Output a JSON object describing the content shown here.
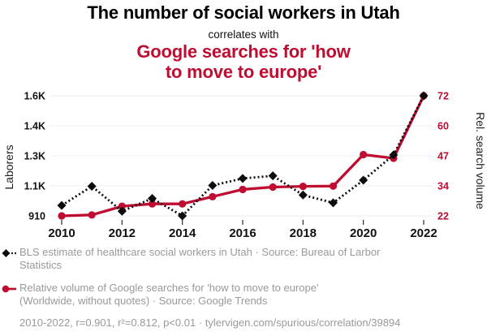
{
  "header": {
    "title": "The number of social workers in Utah",
    "connector": "correlates with",
    "subtitle": "Google searches for 'how\nto move to europe'"
  },
  "colors": {
    "accent_red": "#bf0d31",
    "series_black": "#0d0d0d",
    "legend_gray": "#999999",
    "gridline": "#ececec"
  },
  "chart_data": {
    "type": "line",
    "x": [
      2010,
      2011,
      2012,
      2013,
      2014,
      2015,
      2016,
      2017,
      2018,
      2019,
      2020,
      2021,
      2022
    ],
    "x_ticks": [
      2010,
      2012,
      2014,
      2016,
      2018,
      2020,
      2022
    ],
    "series": [
      {
        "name": "social-workers-utah",
        "label": "BLS estimate of healthcare social workers in Utah",
        "axis": "left",
        "color": "#0d0d0d",
        "style": "dotted",
        "marker": "diamond",
        "values": [
          970,
          1080,
          937,
          1010,
          910,
          1085,
          1125,
          1140,
          1030,
          985,
          1115,
          1260,
          1600
        ]
      },
      {
        "name": "google-search-volume",
        "label": "Relative volume of Google searches for 'how to move to europe'",
        "axis": "right",
        "color": "#bf0d31",
        "style": "solid",
        "marker": "circle",
        "values": [
          22,
          22.4,
          26,
          27,
          27,
          30,
          33,
          34,
          34.3,
          34.4,
          47.5,
          46,
          72
        ]
      }
    ],
    "left_axis": {
      "label": "Laborers",
      "min": 910,
      "max": 1600,
      "color": "#111111",
      "ticks": [
        {
          "value": 910,
          "label": "910"
        },
        {
          "value": 1082.5,
          "label": "1.1K"
        },
        {
          "value": 1255,
          "label": "1.3K"
        },
        {
          "value": 1427.5,
          "label": "1.4K"
        },
        {
          "value": 1600,
          "label": "1.6K"
        }
      ]
    },
    "right_axis": {
      "label": "Rel. search volume",
      "min": 22,
      "max": 72,
      "color": "#bf0d31",
      "ticks": [
        {
          "value": 22,
          "label": "22"
        },
        {
          "value": 34.5,
          "label": "34"
        },
        {
          "value": 47,
          "label": "47"
        },
        {
          "value": 59.5,
          "label": "60"
        },
        {
          "value": 72,
          "label": "72"
        }
      ]
    },
    "grid": "horizontal-only",
    "legend_position": "below"
  },
  "legend": {
    "items": [
      {
        "text": "BLS estimate of healthcare social workers in Utah · Source: Bureau of Larbor\nStatistics"
      },
      {
        "text": "Relative volume of Google searches for 'how to move to europe'\n(Worldwide, without quotes) · Source: Google Trends"
      }
    ],
    "footer": "2010-2022, r=0.901, r²=0.812, p<0.01 · tylervigen.com/spurious/correlation/39894"
  }
}
